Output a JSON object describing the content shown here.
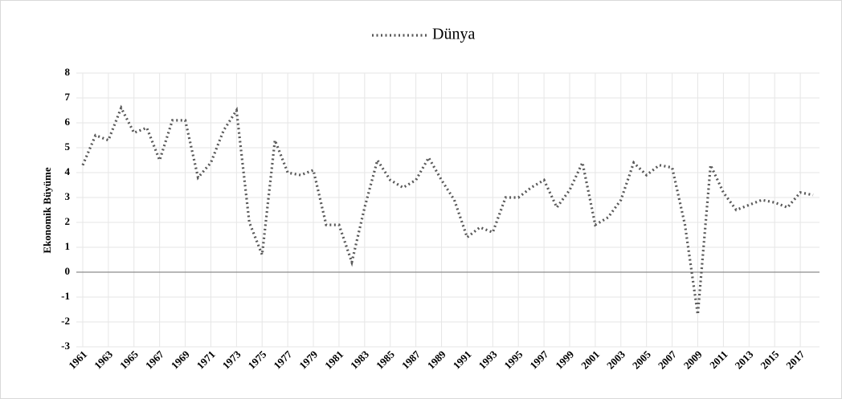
{
  "chart_data": {
    "type": "line",
    "y_label": "Ekonomik Büyüme",
    "x": [
      1961,
      1962,
      1963,
      1964,
      1965,
      1966,
      1967,
      1968,
      1969,
      1970,
      1971,
      1972,
      1973,
      1974,
      1975,
      1976,
      1977,
      1978,
      1979,
      1980,
      1981,
      1982,
      1983,
      1984,
      1985,
      1986,
      1987,
      1988,
      1989,
      1990,
      1991,
      1992,
      1993,
      1994,
      1995,
      1996,
      1997,
      1998,
      1999,
      2000,
      2001,
      2002,
      2003,
      2004,
      2005,
      2006,
      2007,
      2008,
      2009,
      2010,
      2011,
      2012,
      2013,
      2014,
      2015,
      2016,
      2017,
      2018
    ],
    "series": [
      {
        "name": "Dünya",
        "color": "#595959",
        "values": [
          4.3,
          5.5,
          5.3,
          6.6,
          5.6,
          5.8,
          4.5,
          6.1,
          6.1,
          3.8,
          4.4,
          5.7,
          6.5,
          2.0,
          0.7,
          5.3,
          4.0,
          3.9,
          4.1,
          1.9,
          1.9,
          0.4,
          2.6,
          4.5,
          3.7,
          3.4,
          3.7,
          4.6,
          3.7,
          2.9,
          1.4,
          1.8,
          1.6,
          3.0,
          3.0,
          3.4,
          3.7,
          2.6,
          3.3,
          4.4,
          1.9,
          2.2,
          2.9,
          4.4,
          3.9,
          4.3,
          4.2,
          1.9,
          -1.7,
          4.3,
          3.2,
          2.5,
          2.7,
          2.9,
          2.8,
          2.6,
          3.2,
          3.1
        ]
      }
    ],
    "xlim": [
      1960.5,
      2018.5
    ],
    "xticks": [
      1961,
      1963,
      1965,
      1967,
      1969,
      1971,
      1973,
      1975,
      1977,
      1979,
      1981,
      1983,
      1985,
      1987,
      1989,
      1991,
      1993,
      1995,
      1997,
      1999,
      2001,
      2003,
      2005,
      2007,
      2009,
      2011,
      2013,
      2015,
      2017
    ],
    "ylim": [
      -3,
      8
    ],
    "yticks": [
      -3,
      -2,
      -1,
      0,
      1,
      2,
      3,
      4,
      5,
      6,
      7,
      8
    ],
    "grid": true,
    "legend": "top"
  }
}
